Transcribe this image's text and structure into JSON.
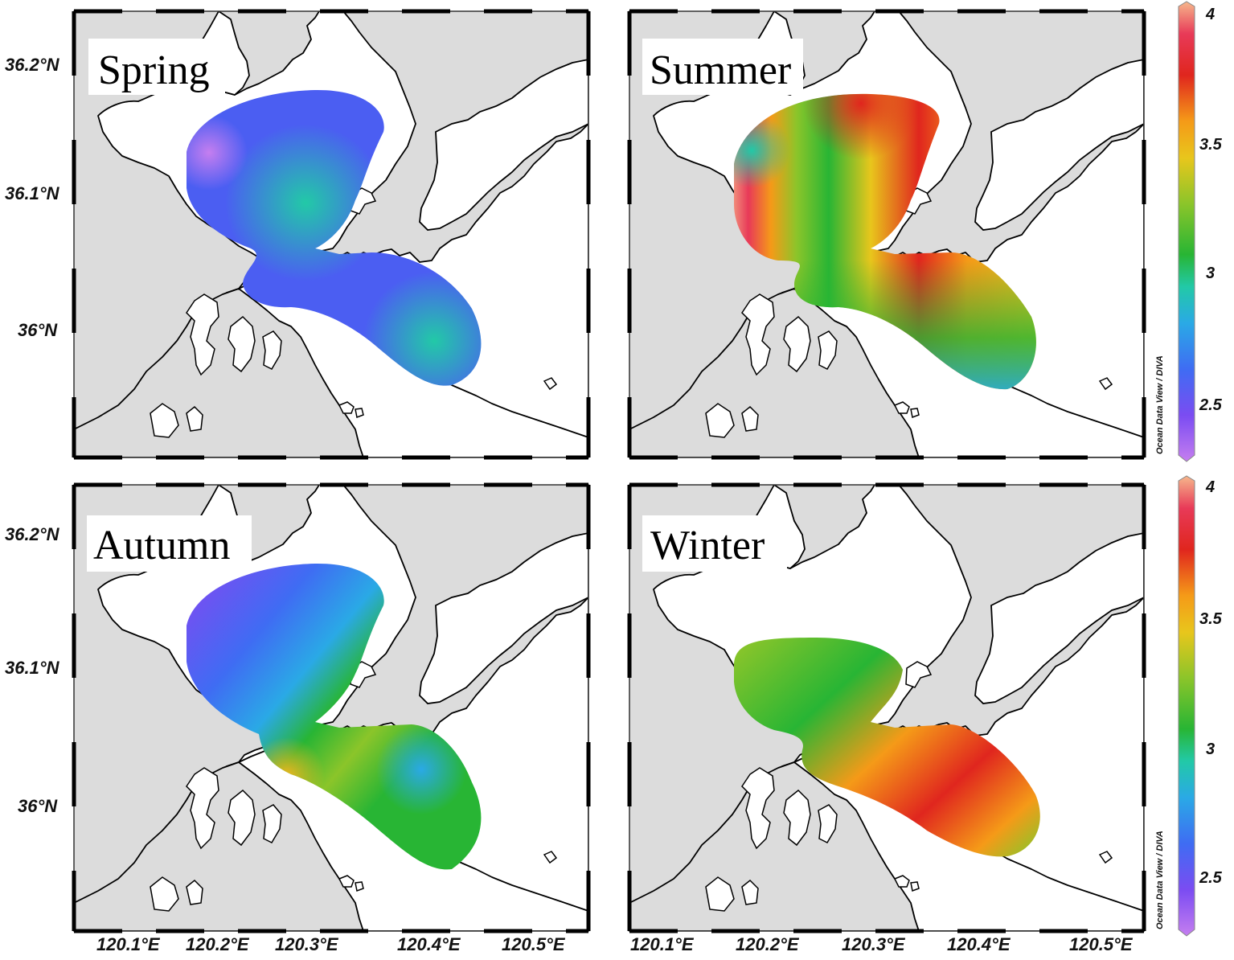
{
  "panels": [
    {
      "season": "Spring"
    },
    {
      "season": "Summer"
    },
    {
      "season": "Autumn"
    },
    {
      "season": "Winter"
    }
  ],
  "lat_labels": [
    "36.2°N",
    "36.1°N",
    "36°N"
  ],
  "lon_labels": [
    "120.1°E",
    "120.2°E",
    "120.3°E",
    "120.4°E",
    "120.5°E"
  ],
  "colorbar": {
    "ticks": [
      "4",
      "3.5",
      "3",
      "2.5"
    ],
    "range": [
      2.3,
      4.0
    ],
    "credit": "Ocean Data View / DIVA",
    "colors": [
      "#c57ef0",
      "#7b4cf2",
      "#3f6cf3",
      "#2aa9e6",
      "#22c9a7",
      "#28b534",
      "#8bc52a",
      "#e8c61c",
      "#f59a18",
      "#e0261e",
      "#e83a58",
      "#f6b78c"
    ]
  },
  "colors": {
    "land": "#dcdcdc",
    "water": "#ffffff",
    "coast": "#000000"
  }
}
